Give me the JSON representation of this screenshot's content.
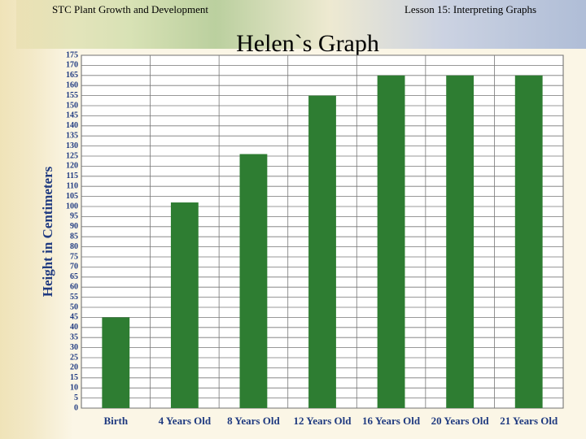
{
  "header": {
    "left": "STC Plant Growth and Development",
    "right": "Lesson 15:  Interpreting Graphs"
  },
  "chart_data": {
    "type": "bar",
    "title": "Helen`s Graph",
    "y_label": "Height in Centimeters",
    "categories": [
      "Birth",
      "4 Years Old",
      "8 Years Old",
      "12 Years Old",
      "16 Years Old",
      "20 Years Old",
      "21 Years Old"
    ],
    "values": [
      45,
      102,
      126,
      155,
      165,
      165,
      165
    ],
    "color": "#2e7d32",
    "ylim": [
      0,
      175
    ],
    "yticks": [
      0,
      5,
      10,
      15,
      20,
      25,
      30,
      35,
      40,
      45,
      50,
      55,
      60,
      65,
      70,
      75,
      80,
      85,
      90,
      95,
      100,
      105,
      110,
      115,
      120,
      125,
      130,
      135,
      140,
      145,
      150,
      155,
      160,
      165,
      170,
      175
    ],
    "grid": true
  }
}
